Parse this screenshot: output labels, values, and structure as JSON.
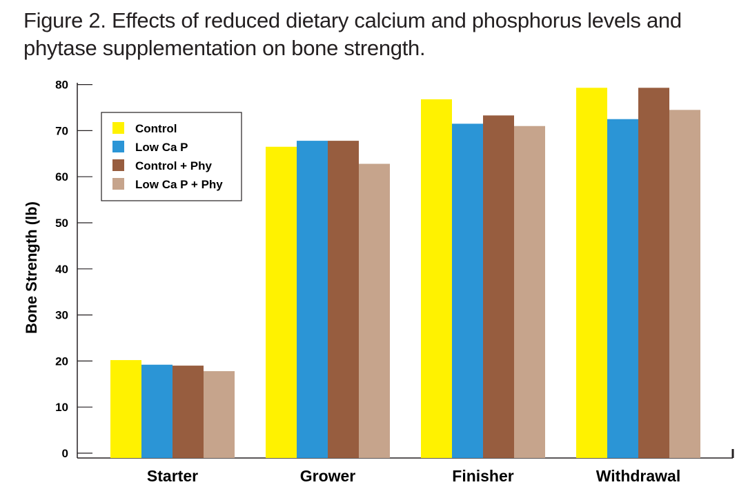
{
  "chart_data": {
    "type": "bar",
    "title": "Figure 2. Effects of reduced dietary calcium and phosphorus levels and phytase supplementation on bone strength.",
    "xlabel": "",
    "ylabel": "Bone Strength (lb)",
    "ylim": [
      0,
      80
    ],
    "yticks": [
      80,
      70,
      60,
      50,
      40,
      30,
      20,
      10,
      0
    ],
    "categories": [
      "Starter",
      "Grower",
      "Finisher",
      "Withdrawal"
    ],
    "series": [
      {
        "name": "Control",
        "color": "#fff200",
        "values": [
          20.2,
          66.5,
          76.8,
          79.3
        ]
      },
      {
        "name": "Low Ca P",
        "color": "#2b95d6",
        "values": [
          19.2,
          67.8,
          71.5,
          72.5
        ]
      },
      {
        "name": "Control + Phy",
        "color": "#975d3f",
        "values": [
          19.0,
          67.8,
          73.3,
          79.3
        ]
      },
      {
        "name": "Low Ca P + Phy",
        "color": "#c6a48c",
        "values": [
          17.8,
          62.8,
          71.0,
          74.5
        ]
      }
    ],
    "legend_position": "top-left",
    "grid": false
  }
}
